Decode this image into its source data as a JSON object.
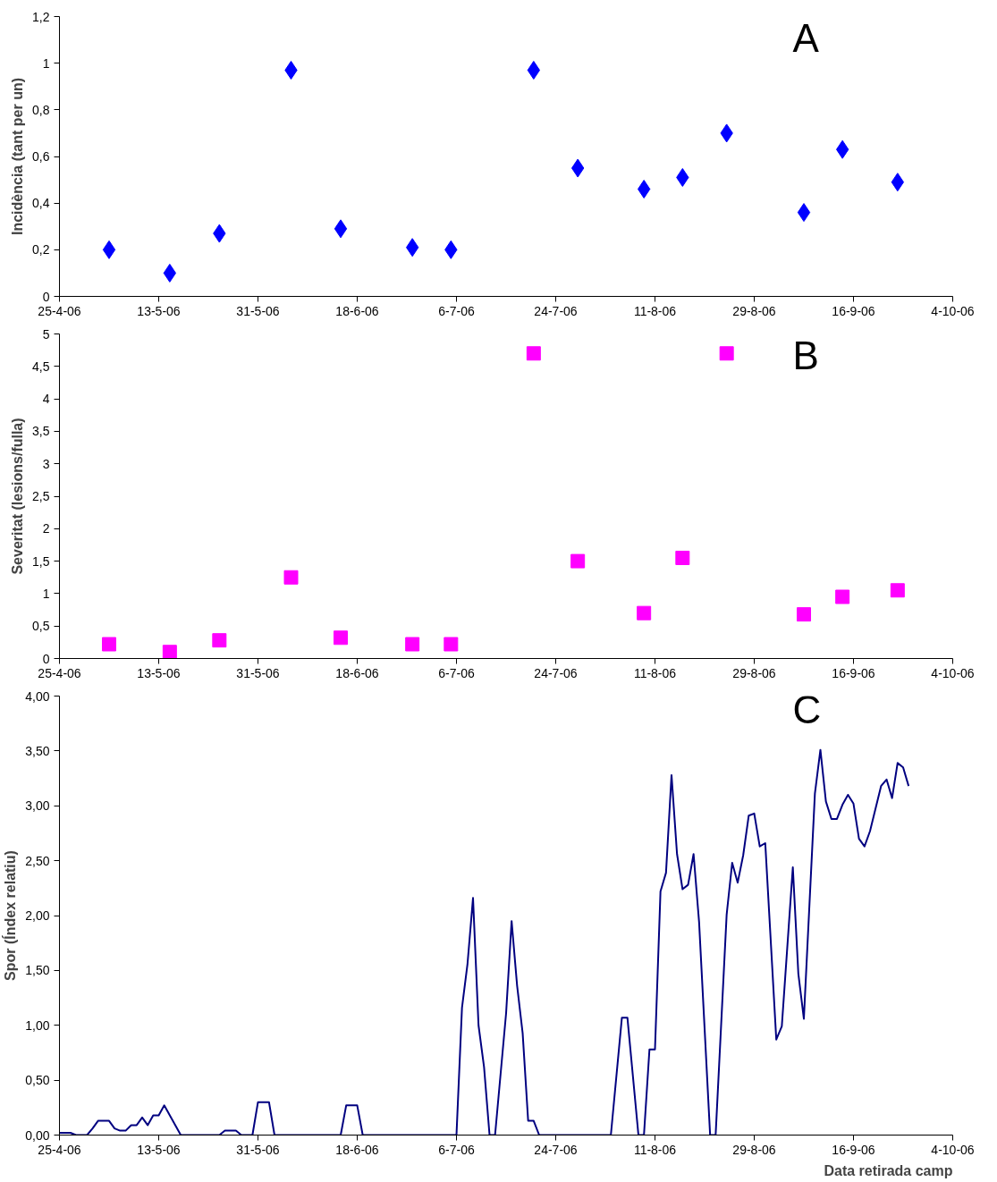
{
  "chart_data": [
    {
      "type": "scatter",
      "ylabel": "Incidència (tant per un)",
      "annotations": [
        "A"
      ],
      "marker": "diamond",
      "grid": false,
      "x": [
        "2006-05-04",
        "2006-05-15",
        "2006-05-24",
        "2006-06-06",
        "2006-06-15",
        "2006-06-28",
        "2006-07-05",
        "2006-07-20",
        "2006-07-28",
        "2006-08-09",
        "2006-08-16",
        "2006-08-24",
        "2006-09-07",
        "2006-09-14",
        "2006-09-24"
      ],
      "series": [
        {
          "color": "#0000ff",
          "values": [
            0.2,
            0.1,
            0.27,
            0.97,
            0.29,
            0.21,
            0.2,
            0.97,
            0.55,
            0.46,
            0.51,
            0.7,
            0.36,
            0.63,
            0.49
          ]
        }
      ],
      "xlim": [
        "2006-04-25",
        "2006-10-04"
      ],
      "xticks": [
        {
          "value": "2006-04-25",
          "label": "25-4-06"
        },
        {
          "value": "2006-05-13",
          "label": "13-5-06"
        },
        {
          "value": "2006-05-31",
          "label": "31-5-06"
        },
        {
          "value": "2006-06-18",
          "label": "18-6-06"
        },
        {
          "value": "2006-07-06",
          "label": "6-7-06"
        },
        {
          "value": "2006-07-24",
          "label": "24-7-06"
        },
        {
          "value": "2006-08-11",
          "label": "11-8-06"
        },
        {
          "value": "2006-08-29",
          "label": "29-8-06"
        },
        {
          "value": "2006-09-16",
          "label": "16-9-06"
        },
        {
          "value": "2006-10-04",
          "label": "4-10-06"
        }
      ],
      "ylim": [
        0,
        1.2
      ],
      "yticks": [
        0,
        {
          "value": 0.2,
          "label": "0,2"
        },
        {
          "value": 0.4,
          "label": "0,4"
        },
        {
          "value": 0.6,
          "label": "0,6"
        },
        {
          "value": 0.8,
          "label": "0,8"
        },
        1,
        {
          "value": 1.2,
          "label": "1,2"
        }
      ]
    },
    {
      "type": "scatter",
      "ylabel": "Severitat (lesions/fulla)",
      "annotations": [
        "B"
      ],
      "marker": "square",
      "grid": false,
      "x": [
        "2006-05-04",
        "2006-05-15",
        "2006-05-24",
        "2006-06-06",
        "2006-06-15",
        "2006-06-28",
        "2006-07-05",
        "2006-07-20",
        "2006-07-28",
        "2006-08-09",
        "2006-08-16",
        "2006-08-24",
        "2006-09-07",
        "2006-09-14",
        "2006-09-24"
      ],
      "series": [
        {
          "color": "#ff00ff",
          "values": [
            0.22,
            0.1,
            0.28,
            1.25,
            0.32,
            0.22,
            0.22,
            4.7,
            1.5,
            0.7,
            1.55,
            4.7,
            0.68,
            0.95,
            1.05
          ]
        }
      ],
      "xlim": [
        "2006-04-25",
        "2006-10-04"
      ],
      "xticks": [
        {
          "value": "2006-04-25",
          "label": "25-4-06"
        },
        {
          "value": "2006-05-13",
          "label": "13-5-06"
        },
        {
          "value": "2006-05-31",
          "label": "31-5-06"
        },
        {
          "value": "2006-06-18",
          "label": "18-6-06"
        },
        {
          "value": "2006-07-06",
          "label": "6-7-06"
        },
        {
          "value": "2006-07-24",
          "label": "24-7-06"
        },
        {
          "value": "2006-08-11",
          "label": "11-8-06"
        },
        {
          "value": "2006-08-29",
          "label": "29-8-06"
        },
        {
          "value": "2006-09-16",
          "label": "16-9-06"
        },
        {
          "value": "2006-10-04",
          "label": "4-10-06"
        }
      ],
      "ylim": [
        0,
        5
      ],
      "yticks": [
        0,
        {
          "value": 0.5,
          "label": "0,5"
        },
        1,
        {
          "value": 1.5,
          "label": "1,5"
        },
        2,
        {
          "value": 2.5,
          "label": "2,5"
        },
        3,
        {
          "value": 3.5,
          "label": "3,5"
        },
        4,
        {
          "value": 4.5,
          "label": "4,5"
        },
        5
      ]
    },
    {
      "type": "line",
      "ylabel": "Spor (Índex relatiu)",
      "xlabel": "Data retirada camp",
      "annotations": [
        "C"
      ],
      "grid": false,
      "line_style": "solid",
      "x": [
        "2006-04-25",
        "2006-04-27",
        "2006-04-28",
        "2006-04-30",
        "2006-05-01",
        "2006-05-02",
        "2006-05-04",
        "2006-05-05",
        "2006-05-06",
        "2006-05-07",
        "2006-05-08",
        "2006-05-09",
        "2006-05-10",
        "2006-05-11",
        "2006-05-12",
        "2006-05-13",
        "2006-05-14",
        "2006-05-17",
        "2006-05-24",
        "2006-05-25",
        "2006-05-27",
        "2006-05-28",
        "2006-05-30",
        "2006-05-31",
        "2006-06-02",
        "2006-06-03",
        "2006-06-15",
        "2006-06-16",
        "2006-06-18",
        "2006-06-19",
        "2006-07-06",
        "2006-07-07",
        "2006-07-08",
        "2006-07-09",
        "2006-07-10",
        "2006-07-11",
        "2006-07-12",
        "2006-07-13",
        "2006-07-15",
        "2006-07-16",
        "2006-07-17",
        "2006-07-18",
        "2006-07-19",
        "2006-07-20",
        "2006-07-21",
        "2006-08-03",
        "2006-08-05",
        "2006-08-06",
        "2006-08-08",
        "2006-08-09",
        "2006-08-10",
        "2006-08-11",
        "2006-08-12",
        "2006-08-13",
        "2006-08-14",
        "2006-08-15",
        "2006-08-16",
        "2006-08-17",
        "2006-08-18",
        "2006-08-19",
        "2006-08-21",
        "2006-08-22",
        "2006-08-24",
        "2006-08-25",
        "2006-08-26",
        "2006-08-27",
        "2006-08-28",
        "2006-08-29",
        "2006-08-30",
        "2006-08-31",
        "2006-09-02",
        "2006-09-03",
        "2006-09-05",
        "2006-09-06",
        "2006-09-07",
        "2006-09-09",
        "2006-09-10",
        "2006-09-11",
        "2006-09-12",
        "2006-09-13",
        "2006-09-14",
        "2006-09-15",
        "2006-09-16",
        "2006-09-17",
        "2006-09-18",
        "2006-09-19",
        "2006-09-21",
        "2006-09-22",
        "2006-09-23",
        "2006-09-24",
        "2006-09-25",
        "2006-09-26"
      ],
      "series": [
        {
          "color": "#000080",
          "values": [
            0.02,
            0.02,
            0,
            0,
            0.06,
            0.13,
            0.13,
            0.06,
            0.04,
            0.04,
            0.09,
            0.09,
            0.16,
            0.09,
            0.18,
            0.18,
            0.27,
            0,
            0,
            0.04,
            0.04,
            0,
            0,
            0.3,
            0.3,
            0,
            0,
            0.27,
            0.27,
            0,
            0,
            1.16,
            1.56,
            2.16,
            1.0,
            0.62,
            0,
            0,
            1.11,
            1.95,
            1.36,
            0.93,
            0.13,
            0.13,
            0,
            0,
            1.07,
            1.07,
            0,
            0,
            0.78,
            0.78,
            2.22,
            2.39,
            3.28,
            2.56,
            2.24,
            2.28,
            2.56,
            1.94,
            0,
            0,
            2.01,
            2.48,
            2.3,
            2.55,
            2.91,
            2.93,
            2.63,
            2.66,
            0.87,
            0.99,
            2.44,
            1.47,
            1.06,
            3.11,
            3.51,
            3.04,
            2.88,
            2.88,
            3.01,
            3.1,
            3.02,
            2.7,
            2.63,
            2.77,
            3.18,
            3.24,
            3.07,
            3.39,
            3.35,
            3.18
          ]
        }
      ],
      "xlim": [
        "2006-04-25",
        "2006-10-04"
      ],
      "xticks": [
        {
          "value": "2006-04-25",
          "label": "25-4-06"
        },
        {
          "value": "2006-05-13",
          "label": "13-5-06"
        },
        {
          "value": "2006-05-31",
          "label": "31-5-06"
        },
        {
          "value": "2006-06-18",
          "label": "18-6-06"
        },
        {
          "value": "2006-07-06",
          "label": "6-7-06"
        },
        {
          "value": "2006-07-24",
          "label": "24-7-06"
        },
        {
          "value": "2006-08-11",
          "label": "11-8-06"
        },
        {
          "value": "2006-08-29",
          "label": "29-8-06"
        },
        {
          "value": "2006-09-16",
          "label": "16-9-06"
        },
        {
          "value": "2006-10-04",
          "label": "4-10-06"
        }
      ],
      "ylim": [
        0,
        4
      ],
      "yticks": [
        {
          "value": 0,
          "label": "0,00"
        },
        {
          "value": 0.5,
          "label": "0,50"
        },
        {
          "value": 1,
          "label": "1,00"
        },
        {
          "value": 1.5,
          "label": "1,50"
        },
        {
          "value": 2,
          "label": "2,00"
        },
        {
          "value": 2.5,
          "label": "2,50"
        },
        {
          "value": 3,
          "label": "3,00"
        },
        {
          "value": 3.5,
          "label": "3,50"
        },
        {
          "value": 4,
          "label": "4,00"
        }
      ]
    }
  ]
}
